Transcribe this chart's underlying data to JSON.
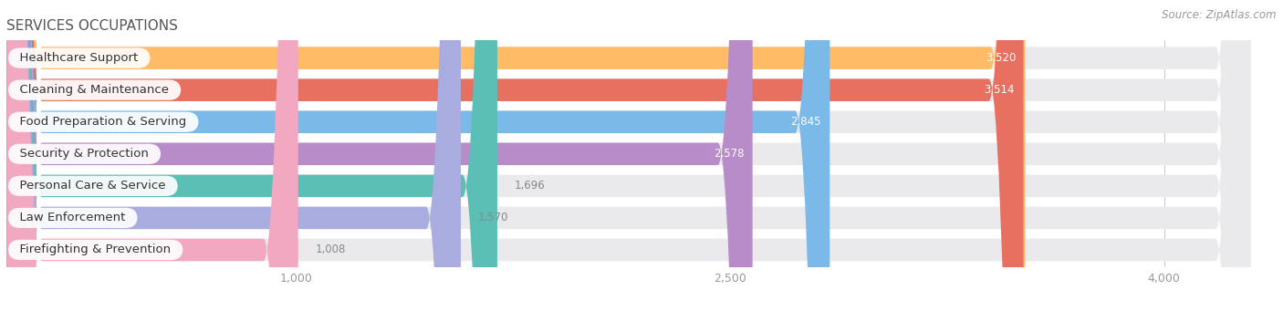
{
  "title": "SERVICES OCCUPATIONS",
  "source": "Source: ZipAtlas.com",
  "categories": [
    "Healthcare Support",
    "Cleaning & Maintenance",
    "Food Preparation & Serving",
    "Security & Protection",
    "Personal Care & Service",
    "Law Enforcement",
    "Firefighting & Prevention"
  ],
  "values": [
    3520,
    3514,
    2845,
    2578,
    1696,
    1570,
    1008
  ],
  "colors": [
    "#FFBB66",
    "#E87060",
    "#7BBAE8",
    "#B88CC8",
    "#5BBFB5",
    "#A8ACDF",
    "#F2A8C0"
  ],
  "bar_background": "#EAEAEC",
  "background_color": "#FFFFFF",
  "xlim_min": 0,
  "xlim_max": 4300,
  "xticks": [
    1000,
    2500,
    4000
  ],
  "title_fontsize": 11,
  "label_fontsize": 9.5,
  "value_fontsize": 8.5,
  "source_fontsize": 8.5
}
